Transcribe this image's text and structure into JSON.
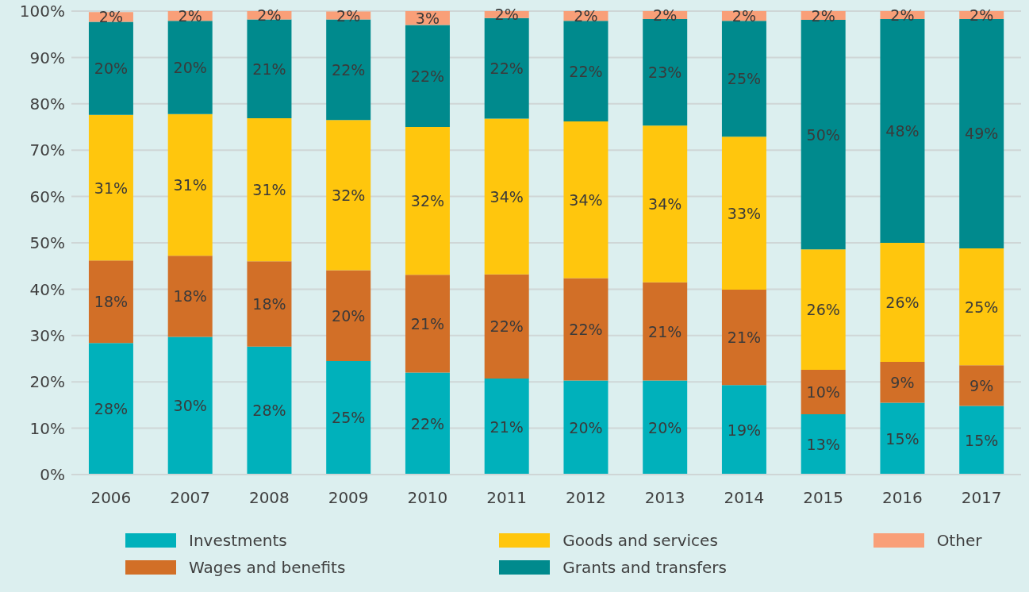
{
  "chart_data": {
    "type": "bar",
    "stacked": true,
    "categories": [
      "2006",
      "2007",
      "2008",
      "2009",
      "2010",
      "2011",
      "2012",
      "2013",
      "2014",
      "2015",
      "2016",
      "2017"
    ],
    "series": [
      {
        "name": "Investments",
        "color": "#00b1bb",
        "values": [
          28.4,
          29.7,
          27.6,
          24.5,
          22.0,
          20.7,
          20.3,
          20.3,
          19.3,
          13.0,
          15.5,
          14.8
        ],
        "value_labels": [
          "28%",
          "30%",
          "28%",
          "25%",
          "22%",
          "21%",
          "20%",
          "20%",
          "19%",
          "13%",
          "15%",
          "15%"
        ]
      },
      {
        "name": "Wages and benefits",
        "color": "#d26f27",
        "values": [
          17.8,
          17.5,
          18.4,
          19.6,
          21.1,
          22.5,
          22.1,
          21.2,
          20.6,
          9.6,
          8.8,
          8.8
        ],
        "value_labels": [
          "18%",
          "18%",
          "18%",
          "20%",
          "21%",
          "22%",
          "22%",
          "21%",
          "21%",
          "10%",
          "9%",
          "9%"
        ]
      },
      {
        "name": "Goods and services",
        "color": "#ffc60d",
        "values": [
          31.4,
          30.6,
          30.9,
          32.4,
          31.9,
          33.6,
          33.8,
          33.8,
          33.0,
          26.0,
          25.7,
          25.2
        ],
        "value_labels": [
          "31%",
          "31%",
          "31%",
          "32%",
          "32%",
          "34%",
          "34%",
          "34%",
          "33%",
          "26%",
          "26%",
          "25%"
        ]
      },
      {
        "name": "Grants and transfers",
        "color": "#008a8d",
        "values": [
          20.1,
          20.1,
          21.3,
          21.7,
          22.0,
          21.7,
          21.7,
          23.0,
          25.0,
          49.5,
          48.3,
          49.5
        ],
        "value_labels": [
          "20%",
          "20%",
          "21%",
          "22%",
          "22%",
          "22%",
          "22%",
          "23%",
          "25%",
          "50%",
          "48%",
          "49%"
        ]
      },
      {
        "name": "Other",
        "color": "#f99f78",
        "values": [
          2.1,
          2.1,
          2.1,
          1.7,
          3.0,
          1.7,
          2.1,
          1.7,
          2.1,
          1.9,
          1.7,
          1.7
        ],
        "value_labels": [
          "2%",
          "2%",
          "2%",
          "2%",
          "3%",
          "2%",
          "2%",
          "2%",
          "2%",
          "2%",
          "2%",
          "2%"
        ]
      }
    ],
    "ylim": [
      0,
      100
    ],
    "yticks": [
      {
        "value": 0,
        "label": "0%"
      },
      {
        "value": 10,
        "label": "10%"
      },
      {
        "value": 20,
        "label": "20%"
      },
      {
        "value": 30,
        "label": "30%"
      },
      {
        "value": 40,
        "label": "40%"
      },
      {
        "value": 50,
        "label": "50%"
      },
      {
        "value": 60,
        "label": "60%"
      },
      {
        "value": 70,
        "label": "70%"
      },
      {
        "value": 80,
        "label": "80%"
      },
      {
        "value": 90,
        "label": "90%"
      },
      {
        "value": 100,
        "label": "100%"
      }
    ],
    "grid": "y",
    "legend": "bottom"
  }
}
